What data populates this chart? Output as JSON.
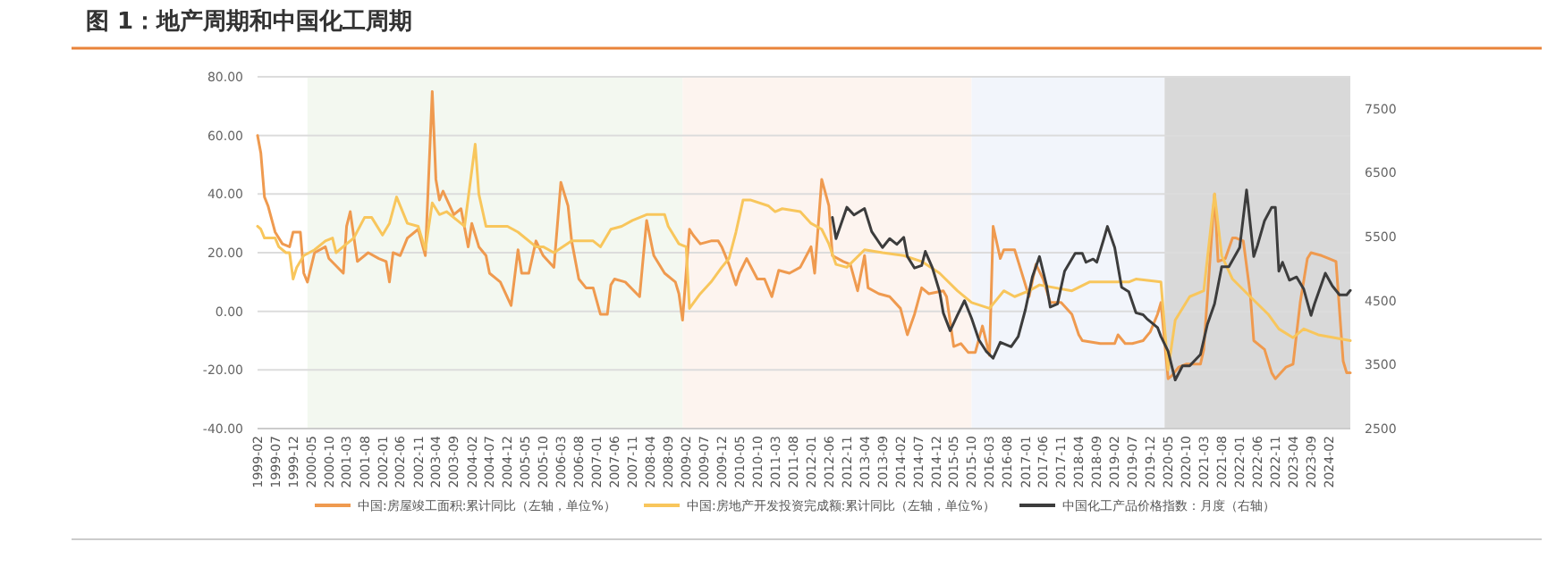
{
  "chart_data": {
    "type": "line",
    "title": "图 1：地产周期和中国化工周期",
    "xlim": [
      "1999-02",
      "2024-08"
    ],
    "xticks": [
      "1999-02",
      "1999-07",
      "1999-12",
      "2000-05",
      "2000-10",
      "2001-03",
      "2001-08",
      "2002-01",
      "2002-06",
      "2002-11",
      "2003-04",
      "2003-09",
      "2004-02",
      "2004-07",
      "2004-12",
      "2005-05",
      "2005-10",
      "2006-03",
      "2006-08",
      "2007-01",
      "2007-06",
      "2007-11",
      "2008-04",
      "2008-09",
      "2009-02",
      "2009-07",
      "2009-12",
      "2010-05",
      "2010-10",
      "2011-03",
      "2011-08",
      "2012-01",
      "2012-06",
      "2012-11",
      "2013-04",
      "2013-09",
      "2014-02",
      "2014-07",
      "2014-12",
      "2015-05",
      "2015-10",
      "2016-03",
      "2016-08",
      "2017-01",
      "2017-06",
      "2017-11",
      "2018-04",
      "2018-09",
      "2019-02",
      "2019-07",
      "2019-12",
      "2020-05",
      "2020-10",
      "2021-03",
      "2021-08",
      "2022-01",
      "2022-06",
      "2022-11",
      "2023-04",
      "2023-09",
      "2024-02"
    ],
    "ylim": [
      -40,
      80
    ],
    "yticks": [
      {
        "value": -40,
        "label": "-40.00"
      },
      {
        "value": -20,
        "label": "-20.00"
      },
      {
        "value": 0,
        "label": "0.00"
      },
      {
        "value": 20,
        "label": "20.00"
      },
      {
        "value": 40,
        "label": "40.00"
      },
      {
        "value": 60,
        "label": "60.00"
      },
      {
        "value": 80,
        "label": "80.00"
      }
    ],
    "y2lim": [
      2500,
      8000
    ],
    "y2ticks": [
      2500,
      3500,
      4500,
      5500,
      6500,
      7500
    ],
    "grid": "y",
    "legend": "bottom",
    "marker": "none",
    "line_style": "solid",
    "bands": [
      {
        "axis": "x",
        "from": "2000-04",
        "to": "2009-01",
        "label": null,
        "color": "#f3f8f0"
      },
      {
        "axis": "x",
        "from": "2009-01",
        "to": "2015-10",
        "label": null,
        "color": "#fdf4ef"
      },
      {
        "axis": "x",
        "from": "2015-10",
        "to": "2020-04",
        "label": null,
        "color": "#f2f5fb"
      },
      {
        "axis": "x",
        "from": "2020-04",
        "to": "2024-08",
        "label": null,
        "color": "#d9d9d9"
      }
    ],
    "series": [
      {
        "name": "中国:房屋竣工面积:累计同比（左轴，单位%）",
        "color": "#ef9a4f",
        "x": [
          "1999-02",
          "1999-03",
          "1999-04",
          "1999-05",
          "1999-07",
          "1999-09",
          "1999-11",
          "1999-12",
          "2000-02",
          "2000-03",
          "2000-04",
          "2000-06",
          "2000-09",
          "2000-10",
          "2001-02",
          "2001-03",
          "2001-04",
          "2001-06",
          "2001-09",
          "2001-12",
          "2002-02",
          "2002-03",
          "2002-04",
          "2002-06",
          "2002-08",
          "2002-11",
          "2003-01",
          "2003-03",
          "2003-04",
          "2003-05",
          "2003-06",
          "2003-09",
          "2003-11",
          "2004-01",
          "2004-02",
          "2004-04",
          "2004-06",
          "2004-07",
          "2004-10",
          "2005-01",
          "2005-03",
          "2005-04",
          "2005-06",
          "2005-08",
          "2005-10",
          "2006-01",
          "2006-03",
          "2006-05",
          "2006-06",
          "2006-08",
          "2006-10",
          "2006-12",
          "2007-02",
          "2007-04",
          "2007-05",
          "2007-06",
          "2007-09",
          "2008-01",
          "2008-03",
          "2008-05",
          "2008-08",
          "2008-11",
          "2008-12",
          "2009-01",
          "2009-03",
          "2009-04",
          "2009-06",
          "2009-09",
          "2009-11",
          "2009-12",
          "2010-02",
          "2010-04",
          "2010-05",
          "2010-07",
          "2010-10",
          "2010-12",
          "2011-02",
          "2011-04",
          "2011-07",
          "2011-10",
          "2012-01",
          "2012-02",
          "2012-04",
          "2012-06",
          "2012-07",
          "2012-10",
          "2012-12",
          "2013-02",
          "2013-04",
          "2013-05",
          "2013-08",
          "2013-11",
          "2014-02",
          "2014-04",
          "2014-06",
          "2014-08",
          "2014-10",
          "2015-02",
          "2015-03",
          "2015-05",
          "2015-07",
          "2015-09",
          "2015-11",
          "2016-01",
          "2016-03",
          "2016-04",
          "2016-06",
          "2016-07",
          "2016-10",
          "2016-11",
          "2017-02",
          "2017-04",
          "2017-06",
          "2017-08",
          "2017-11",
          "2018-02",
          "2018-04",
          "2018-05",
          "2018-10",
          "2019-02",
          "2019-03",
          "2019-05",
          "2019-07",
          "2019-10",
          "2019-12",
          "2020-02",
          "2020-03",
          "2020-05",
          "2020-06",
          "2020-08",
          "2020-10",
          "2020-12",
          "2021-02",
          "2021-03",
          "2021-06",
          "2021-07",
          "2021-09",
          "2021-11",
          "2021-12",
          "2022-02",
          "2022-04",
          "2022-05",
          "2022-08",
          "2022-10",
          "2022-11",
          "2023-02",
          "2023-04",
          "2023-06",
          "2023-08",
          "2023-09",
          "2023-12",
          "2024-02",
          "2024-04",
          "2024-06",
          "2024-07",
          "2024-08"
        ],
        "values": [
          60,
          54,
          39,
          36,
          27,
          23,
          22,
          27,
          27,
          13,
          10,
          20,
          22,
          18,
          13,
          29,
          34,
          17,
          20,
          18,
          17,
          10,
          20,
          19,
          25,
          28,
          19,
          75,
          45,
          38,
          41,
          33,
          35,
          22,
          30,
          22,
          19,
          13,
          10,
          2,
          21,
          13,
          13,
          24,
          19,
          15,
          44,
          36,
          24,
          11,
          8,
          8,
          -1,
          -1,
          9,
          11,
          10,
          5,
          31,
          19,
          13,
          10,
          6,
          -3,
          28,
          26,
          23,
          24,
          24,
          22,
          16,
          9,
          13,
          18,
          11,
          11,
          5,
          14,
          13,
          15,
          22,
          13,
          45,
          36,
          19,
          17,
          16,
          7,
          19,
          8,
          6,
          5,
          1,
          -8,
          -1,
          8,
          6,
          7,
          5,
          -12,
          -11,
          -14,
          -14,
          -5,
          -15,
          29,
          18,
          21,
          21,
          17,
          5,
          16,
          11,
          3,
          3,
          -1,
          -8,
          -10,
          -11,
          -11,
          -8,
          -11,
          -11,
          -10,
          -7,
          -1,
          3,
          -23,
          -22,
          -19,
          -18,
          -18,
          -18,
          -13,
          40,
          17,
          18,
          25,
          25,
          24,
          6,
          -10,
          -13,
          -21,
          -23,
          -19,
          -18,
          3,
          18,
          20,
          19,
          18,
          17,
          -17,
          -21,
          -21
        ]
      },
      {
        "name": "中国:房地产开发投资完成额:累计同比（左轴，单位%）",
        "color": "#f8c65c",
        "x": [
          "1999-02",
          "1999-03",
          "1999-04",
          "1999-07",
          "1999-08",
          "1999-10",
          "1999-11",
          "1999-12",
          "2000-01",
          "2000-03",
          "2000-06",
          "2000-09",
          "2000-11",
          "2000-12",
          "2001-03",
          "2001-05",
          "2001-08",
          "2001-10",
          "2002-01",
          "2002-03",
          "2002-05",
          "2002-08",
          "2002-11",
          "2003-01",
          "2003-03",
          "2003-05",
          "2003-07",
          "2003-12",
          "2004-03",
          "2004-04",
          "2004-06",
          "2004-09",
          "2004-12",
          "2005-03",
          "2005-08",
          "2005-10",
          "2006-01",
          "2006-06",
          "2006-12",
          "2007-02",
          "2007-05",
          "2007-08",
          "2007-11",
          "2008-03",
          "2008-08",
          "2008-09",
          "2008-12",
          "2009-02",
          "2009-03",
          "2009-06",
          "2009-09",
          "2009-12",
          "2010-02",
          "2010-04",
          "2010-06",
          "2010-08",
          "2011-01",
          "2011-03",
          "2011-05",
          "2011-10",
          "2012-01",
          "2012-04",
          "2012-06",
          "2012-08",
          "2012-11",
          "2013-04",
          "2013-09",
          "2014-03",
          "2014-08",
          "2015-01",
          "2015-06",
          "2015-10",
          "2016-03",
          "2016-07",
          "2016-10",
          "2017-02",
          "2017-05",
          "2018-02",
          "2018-07",
          "2019-06",
          "2019-08",
          "2020-03",
          "2020-05",
          "2020-07",
          "2020-11",
          "2021-03",
          "2021-06",
          "2021-08",
          "2021-11",
          "2022-04",
          "2022-09",
          "2022-12",
          "2023-04",
          "2023-07",
          "2023-11",
          "2024-08"
        ],
        "values": [
          29,
          28,
          25,
          25,
          22,
          20,
          20,
          11,
          15,
          19,
          21,
          24,
          25,
          20,
          23,
          25,
          32,
          32,
          26,
          30,
          39,
          30,
          29,
          21,
          37,
          33,
          34,
          29,
          57,
          40,
          29,
          29,
          29,
          27,
          22,
          22,
          20,
          24,
          24,
          22,
          28,
          29,
          31,
          33,
          33,
          29,
          23,
          22,
          1,
          6,
          10,
          15,
          18,
          27,
          38,
          38,
          36,
          34,
          35,
          34,
          30,
          28,
          23,
          16,
          15,
          21,
          20,
          19,
          17,
          13,
          7,
          3,
          1,
          7,
          5,
          7,
          9,
          7,
          10,
          10,
          11,
          10,
          -20,
          -3,
          5,
          7,
          40,
          19,
          11,
          5,
          -1,
          -6,
          -9,
          -6,
          -8,
          -10
        ]
      },
      {
        "name": "中国化工产品价格指数：月度（右轴）",
        "color": "#3c3c3c",
        "axis": "y2",
        "x": [
          "2012-07",
          "2012-08",
          "2012-11",
          "2013-01",
          "2013-04",
          "2013-06",
          "2013-09",
          "2013-11",
          "2014-01",
          "2014-03",
          "2014-04",
          "2014-06",
          "2014-08",
          "2014-09",
          "2014-11",
          "2015-01",
          "2015-02",
          "2015-04",
          "2015-06",
          "2015-08",
          "2015-10",
          "2015-12",
          "2016-02",
          "2016-04",
          "2016-06",
          "2016-09",
          "2016-11",
          "2017-01",
          "2017-03",
          "2017-05",
          "2017-07",
          "2017-08",
          "2017-10",
          "2017-12",
          "2018-03",
          "2018-05",
          "2018-06",
          "2018-08",
          "2018-09",
          "2018-11",
          "2018-12",
          "2019-02",
          "2019-04",
          "2019-06",
          "2019-08",
          "2019-10",
          "2019-11",
          "2020-02",
          "2020-03",
          "2020-05",
          "2020-07",
          "2020-09",
          "2020-11",
          "2021-02",
          "2021-04",
          "2021-06",
          "2021-08",
          "2021-10",
          "2022-01",
          "2022-03",
          "2022-05",
          "2022-06",
          "2022-08",
          "2022-10",
          "2022-11",
          "2022-12",
          "2023-01",
          "2023-03",
          "2023-05",
          "2023-07",
          "2023-09",
          "2023-10",
          "2024-01",
          "2024-03",
          "2024-05",
          "2024-07",
          "2024-08"
        ],
        "values": [
          5800,
          5470,
          5960,
          5840,
          5940,
          5580,
          5330,
          5470,
          5380,
          5490,
          5190,
          5010,
          5050,
          5270,
          5010,
          4640,
          4310,
          4030,
          4270,
          4500,
          4220,
          3890,
          3710,
          3600,
          3850,
          3780,
          3940,
          4360,
          4870,
          5190,
          4730,
          4400,
          4450,
          4960,
          5240,
          5240,
          5100,
          5150,
          5100,
          5470,
          5660,
          5330,
          4710,
          4640,
          4310,
          4280,
          4220,
          4080,
          3940,
          3710,
          3260,
          3480,
          3480,
          3660,
          4130,
          4450,
          5030,
          5030,
          5330,
          6230,
          5190,
          5360,
          5750,
          5960,
          5960,
          4960,
          5100,
          4820,
          4870,
          4680,
          4270,
          4450,
          4930,
          4730,
          4590,
          4590,
          4660
        ]
      }
    ]
  }
}
